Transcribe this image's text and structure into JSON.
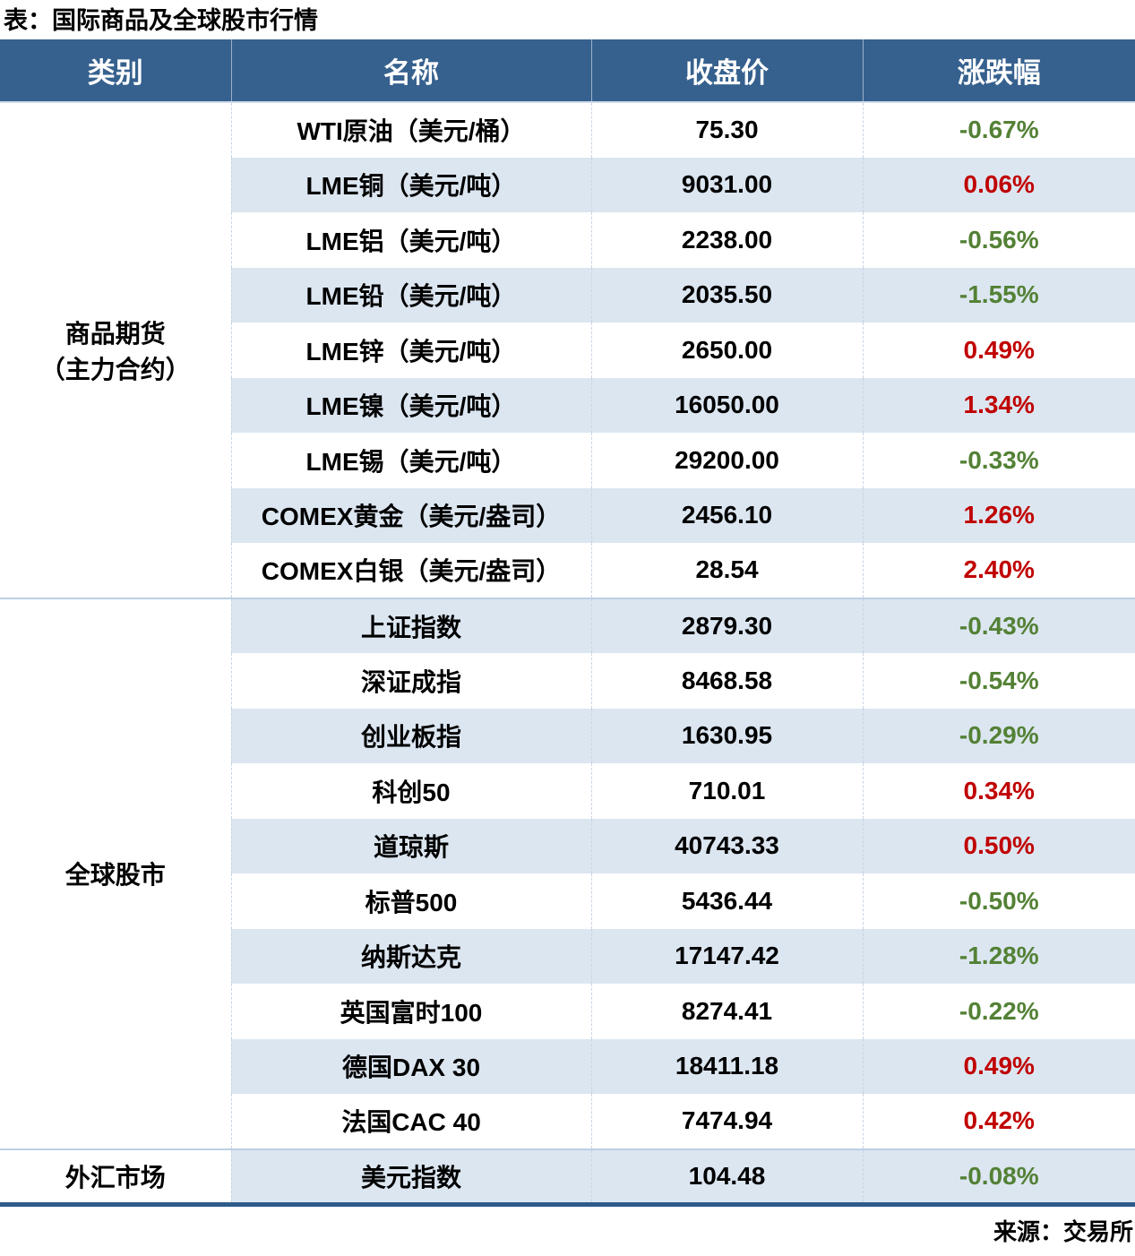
{
  "page_title": "表：国际商品及全球股市行情",
  "colors": {
    "header_bg": "#36618E",
    "row_stripe": "#DCE6F1",
    "change_up_red": "#C00000",
    "change_down_green": "#538135",
    "table_bottom_border": "#2E5B8A",
    "section_divider": "#BCCFE5"
  },
  "chart_data": {
    "type": "table",
    "title": "表：国际商品及全球股市行情",
    "columns": [
      "类别",
      "名称",
      "收盘价",
      "涨跌幅"
    ],
    "sections": [
      {
        "category": "商品期货（主力合约）",
        "category_lines": [
          "商品期货",
          "（主力合约）"
        ],
        "rows": [
          {
            "name": "WTI原油（美元/桶）",
            "close": "75.30",
            "change": "-0.67%",
            "direction": "down"
          },
          {
            "name": "LME铜（美元/吨）",
            "close": "9031.00",
            "change": "0.06%",
            "direction": "up"
          },
          {
            "name": "LME铝（美元/吨）",
            "close": "2238.00",
            "change": "-0.56%",
            "direction": "down"
          },
          {
            "name": "LME铅（美元/吨）",
            "close": "2035.50",
            "change": "-1.55%",
            "direction": "down"
          },
          {
            "name": "LME锌（美元/吨）",
            "close": "2650.00",
            "change": "0.49%",
            "direction": "up"
          },
          {
            "name": "LME镍（美元/吨）",
            "close": "16050.00",
            "change": "1.34%",
            "direction": "up"
          },
          {
            "name": "LME锡（美元/吨）",
            "close": "29200.00",
            "change": "-0.33%",
            "direction": "down"
          },
          {
            "name": "COMEX黄金（美元/盎司）",
            "close": "2456.10",
            "change": "1.26%",
            "direction": "up"
          },
          {
            "name": "COMEX白银（美元/盎司）",
            "close": "28.54",
            "change": "2.40%",
            "direction": "up"
          }
        ]
      },
      {
        "category": "全球股市",
        "category_lines": [
          "全球股市"
        ],
        "rows": [
          {
            "name": "上证指数",
            "close": "2879.30",
            "change": "-0.43%",
            "direction": "down"
          },
          {
            "name": "深证成指",
            "close": "8468.58",
            "change": "-0.54%",
            "direction": "down"
          },
          {
            "name": "创业板指",
            "close": "1630.95",
            "change": "-0.29%",
            "direction": "down"
          },
          {
            "name": "科创50",
            "close": "710.01",
            "change": "0.34%",
            "direction": "up"
          },
          {
            "name": "道琼斯",
            "close": "40743.33",
            "change": "0.50%",
            "direction": "up"
          },
          {
            "name": "标普500",
            "close": "5436.44",
            "change": "-0.50%",
            "direction": "down"
          },
          {
            "name": "纳斯达克",
            "close": "17147.42",
            "change": "-1.28%",
            "direction": "down"
          },
          {
            "name": "英国富时100",
            "close": "8274.41",
            "change": "-0.22%",
            "direction": "down"
          },
          {
            "name": "德国DAX 30",
            "close": "18411.18",
            "change": "0.49%",
            "direction": "up"
          },
          {
            "name": "法国CAC 40",
            "close": "7474.94",
            "change": "0.42%",
            "direction": "up"
          }
        ]
      },
      {
        "category": "外汇市场",
        "category_lines": [
          "外汇市场"
        ],
        "rows": [
          {
            "name": "美元指数",
            "close": "104.48",
            "change": "-0.08%",
            "direction": "down"
          }
        ]
      }
    ],
    "source": "来源：交易所"
  }
}
